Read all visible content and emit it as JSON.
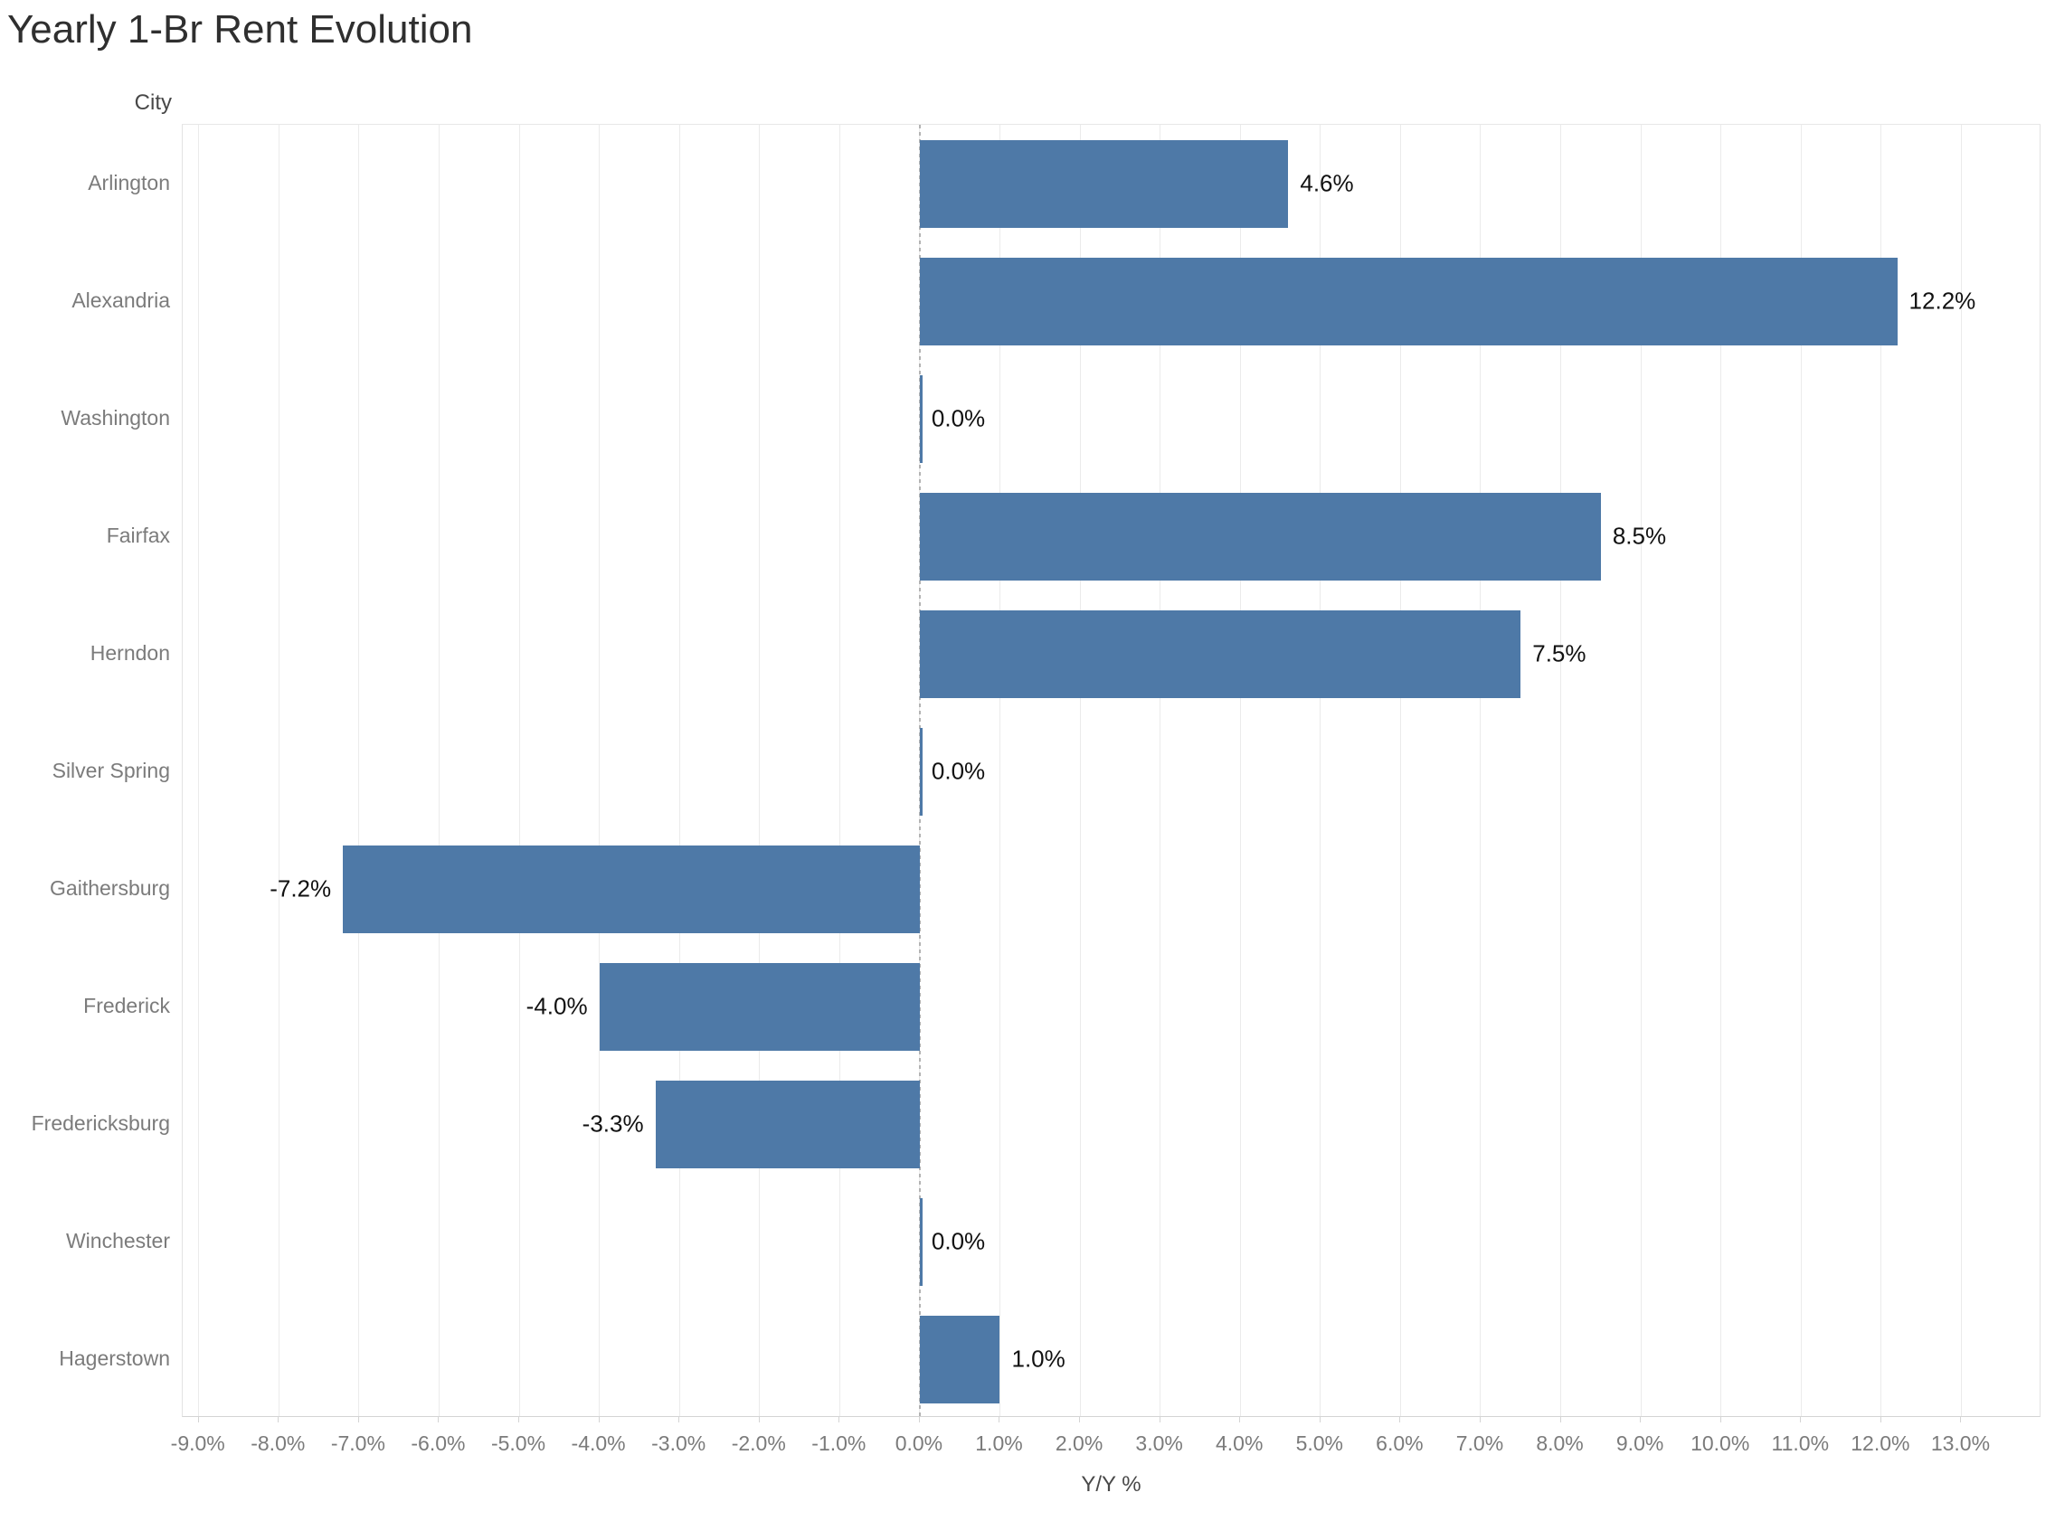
{
  "title": "Yearly 1-Br Rent Evolution",
  "column_header": "City",
  "colors": {
    "bar": "#4e79a7",
    "gridline": "#ebebeb",
    "zero_line": "#b3b3b3",
    "value_label": "#111111",
    "axis_label": "#7b7b7b",
    "header_label": "#484848",
    "title": "#2f2f2f"
  },
  "chart_data": {
    "type": "bar",
    "orientation": "horizontal",
    "title": "Yearly 1-Br Rent Evolution",
    "xlabel": "Y/Y %",
    "ylabel": "City",
    "categories": [
      "Arlington",
      "Alexandria",
      "Washington",
      "Fairfax",
      "Herndon",
      "Silver Spring",
      "Gaithersburg",
      "Frederick",
      "Fredericksburg",
      "Winchester",
      "Hagerstown"
    ],
    "values": [
      4.6,
      12.2,
      0.0,
      8.5,
      7.5,
      0.0,
      -7.2,
      -4.0,
      -3.3,
      0.0,
      1.0
    ],
    "value_labels": [
      "4.6%",
      "12.2%",
      "0.0%",
      "8.5%",
      "7.5%",
      "0.0%",
      "-7.2%",
      "-4.0%",
      "-3.3%",
      "0.0%",
      "1.0%"
    ],
    "xlim": [
      -9.2,
      14.0
    ],
    "tick_values": [
      -9,
      -8,
      -7,
      -6,
      -5,
      -4,
      -3,
      -2,
      -1,
      0,
      1,
      2,
      3,
      4,
      5,
      6,
      7,
      8,
      9,
      10,
      11,
      12,
      13
    ],
    "tick_labels": [
      "-9.0%",
      "-8.0%",
      "-7.0%",
      "-6.0%",
      "-5.0%",
      "-4.0%",
      "-3.0%",
      "-2.0%",
      "-1.0%",
      "0.0%",
      "1.0%",
      "2.0%",
      "3.0%",
      "4.0%",
      "5.0%",
      "6.0%",
      "7.0%",
      "8.0%",
      "9.0%",
      "10.0%",
      "11.0%",
      "12.0%",
      "13.0%"
    ],
    "grid": "vertical",
    "zero_line": "dashed",
    "legend": "none"
  }
}
